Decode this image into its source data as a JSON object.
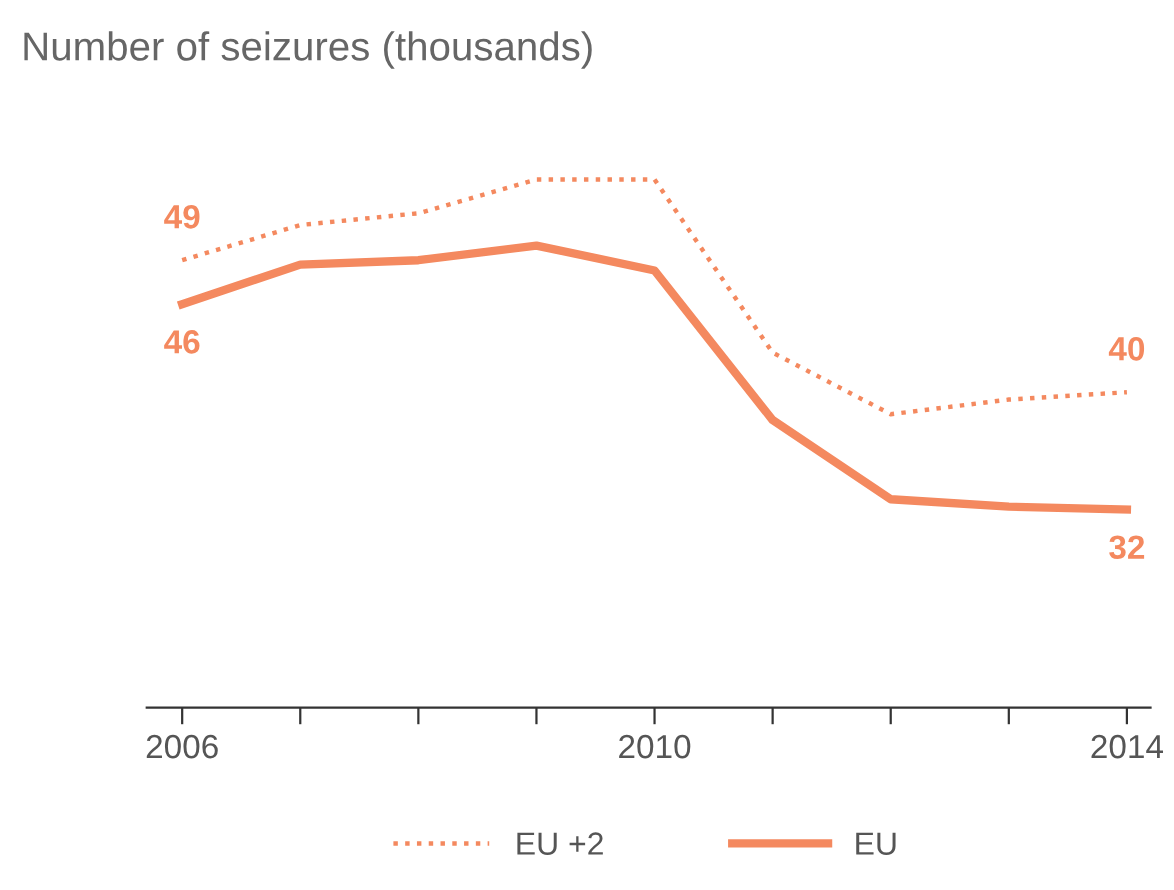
{
  "chart_data": {
    "type": "line",
    "title": "Number of seizures (thousands)",
    "x": [
      2006,
      2007,
      2008,
      2009,
      2010,
      2011,
      2012,
      2013,
      2014
    ],
    "series": [
      {
        "name": "EU +2",
        "color": "#f4895f",
        "line_style": "dotted",
        "values": [
          49,
          51.4,
          52.2,
          54.5,
          54.5,
          42.7,
          38.5,
          39.5,
          40
        ],
        "value_labels": [
          "49",
          null,
          null,
          null,
          null,
          null,
          null,
          null,
          "40"
        ]
      },
      {
        "name": "EU",
        "color": "#f4895f",
        "line_style": "solid",
        "values": [
          46,
          48.7,
          49,
          50,
          48.3,
          38.1,
          32.7,
          32.2,
          32
        ],
        "value_labels": [
          "46",
          null,
          null,
          null,
          null,
          null,
          null,
          null,
          "32"
        ]
      }
    ],
    "xlim": [
      2005.7,
      2014.2
    ],
    "xticks": [
      2006,
      2010,
      2014
    ],
    "tick_labels": "x",
    "grid": false,
    "legend": "bottom",
    "marker": "none"
  }
}
